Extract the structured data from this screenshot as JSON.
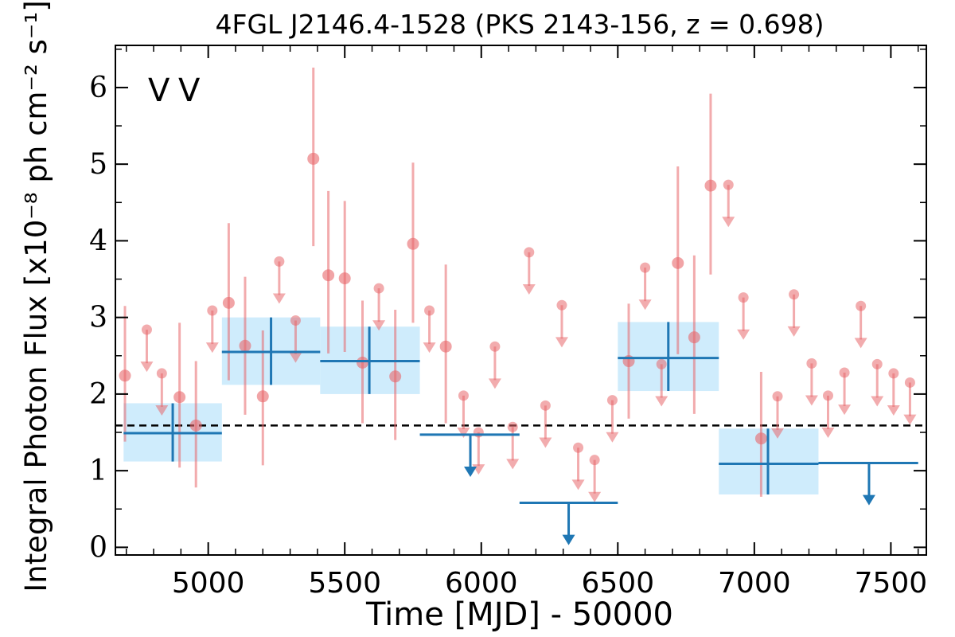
{
  "chart_data": {
    "type": "scatter",
    "title": "4FGL J2146.4-1528 (PKS 2143-156, z = 0.698)",
    "xlabel": "Time [MJD] - 50000",
    "ylabel": "Integral Photon Flux [x10⁻⁸ ph cm⁻² s⁻¹]",
    "xlim": [
      4660,
      7630
    ],
    "ylim": [
      -0.1,
      6.55
    ],
    "xticks": [
      5000,
      5500,
      6000,
      6500,
      7000,
      7500
    ],
    "yticks": [
      0,
      1,
      2,
      3,
      4,
      5,
      6
    ],
    "legend_placement": "top-left",
    "legend_marker": "V",
    "colors": {
      "fine_series": "#e8676b",
      "coarse_series": "#1f77b4",
      "coarse_band": "#bfe6fb",
      "mean_line": "#000000"
    },
    "mean_flux": 1.59,
    "series": [
      {
        "key": "fine",
        "detections": [
          {
            "x": 4695,
            "y": 2.24,
            "ylo": 1.38,
            "yhi": 3.15
          },
          {
            "x": 4895,
            "y": 1.96,
            "ylo": 1.04,
            "yhi": 2.93
          },
          {
            "x": 4955,
            "y": 1.59,
            "ylo": 0.78,
            "yhi": 2.43
          },
          {
            "x": 5075,
            "y": 3.19,
            "ylo": 2.18,
            "yhi": 4.23
          },
          {
            "x": 5135,
            "y": 2.63,
            "ylo": 1.73,
            "yhi": 3.53
          },
          {
            "x": 5200,
            "y": 1.97,
            "ylo": 1.07,
            "yhi": 2.83
          },
          {
            "x": 5385,
            "y": 5.07,
            "ylo": 3.93,
            "yhi": 6.26
          },
          {
            "x": 5440,
            "y": 3.55,
            "ylo": 2.53,
            "yhi": 4.65
          },
          {
            "x": 5500,
            "y": 3.51,
            "ylo": 2.55,
            "yhi": 4.52
          },
          {
            "x": 5565,
            "y": 2.41,
            "ylo": 1.62,
            "yhi": 3.22
          },
          {
            "x": 5685,
            "y": 2.23,
            "ylo": 1.4,
            "yhi": 3.1
          },
          {
            "x": 5750,
            "y": 3.96,
            "ylo": 2.93,
            "yhi": 5.02
          },
          {
            "x": 5870,
            "y": 2.62,
            "ylo": 1.62,
            "yhi": 3.69
          },
          {
            "x": 6540,
            "y": 2.43,
            "ylo": 1.68,
            "yhi": 3.18
          },
          {
            "x": 6720,
            "y": 3.71,
            "ylo": 2.52,
            "yhi": 4.97
          },
          {
            "x": 6780,
            "y": 2.74,
            "ylo": 1.74,
            "yhi": 3.81
          },
          {
            "x": 6840,
            "y": 4.72,
            "ylo": 3.56,
            "yhi": 5.92
          },
          {
            "x": 7025,
            "y": 1.42,
            "ylo": 0.66,
            "yhi": 2.29
          }
        ],
        "upper_limits": [
          {
            "x": 4775,
            "y": 2.84
          },
          {
            "x": 4830,
            "y": 2.27
          },
          {
            "x": 5015,
            "y": 3.09
          },
          {
            "x": 5260,
            "y": 3.73
          },
          {
            "x": 5320,
            "y": 2.96
          },
          {
            "x": 5625,
            "y": 3.38
          },
          {
            "x": 5810,
            "y": 3.09
          },
          {
            "x": 5935,
            "y": 1.98
          },
          {
            "x": 5990,
            "y": 1.5
          },
          {
            "x": 6050,
            "y": 2.62
          },
          {
            "x": 6115,
            "y": 1.57
          },
          {
            "x": 6175,
            "y": 3.85
          },
          {
            "x": 6235,
            "y": 1.85
          },
          {
            "x": 6295,
            "y": 3.16
          },
          {
            "x": 6355,
            "y": 1.3
          },
          {
            "x": 6415,
            "y": 1.14
          },
          {
            "x": 6480,
            "y": 1.92
          },
          {
            "x": 6600,
            "y": 3.65
          },
          {
            "x": 6660,
            "y": 2.39
          },
          {
            "x": 6905,
            "y": 4.73
          },
          {
            "x": 6960,
            "y": 3.26
          },
          {
            "x": 7085,
            "y": 1.97
          },
          {
            "x": 7145,
            "y": 3.3
          },
          {
            "x": 7210,
            "y": 2.4
          },
          {
            "x": 7270,
            "y": 1.98
          },
          {
            "x": 7330,
            "y": 2.28
          },
          {
            "x": 7390,
            "y": 3.15
          },
          {
            "x": 7450,
            "y": 2.39
          },
          {
            "x": 7510,
            "y": 2.27
          },
          {
            "x": 7570,
            "y": 2.15
          }
        ]
      },
      {
        "key": "coarse",
        "detections": [
          {
            "x": 4870,
            "xlo": 4690,
            "xhi": 5050,
            "y": 1.49,
            "ylo": 1.12,
            "yhi": 1.88
          },
          {
            "x": 5230,
            "xlo": 5050,
            "xhi": 5410,
            "y": 2.55,
            "ylo": 2.12,
            "yhi": 3.0
          },
          {
            "x": 5590,
            "xlo": 5410,
            "xhi": 5775,
            "y": 2.43,
            "ylo": 2.0,
            "yhi": 2.88
          },
          {
            "x": 6685,
            "xlo": 6500,
            "xhi": 6870,
            "y": 2.47,
            "ylo": 2.04,
            "yhi": 2.94
          },
          {
            "x": 7050,
            "xlo": 6870,
            "xhi": 7235,
            "y": 1.09,
            "ylo": 0.69,
            "yhi": 1.55
          }
        ],
        "upper_limits": [
          {
            "x": 5960,
            "xlo": 5775,
            "xhi": 6140,
            "y": 1.47
          },
          {
            "x": 6320,
            "xlo": 6140,
            "xhi": 6500,
            "y": 0.58
          },
          {
            "x": 7420,
            "xlo": 7235,
            "xhi": 7600,
            "y": 1.1
          }
        ]
      }
    ]
  }
}
